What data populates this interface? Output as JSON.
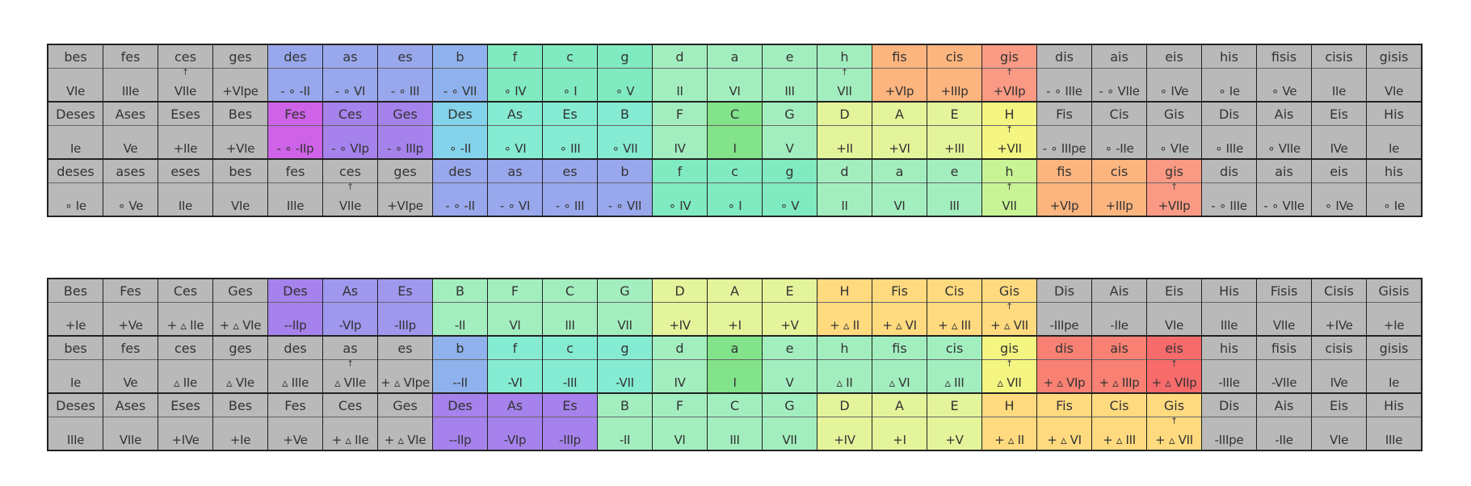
{
  "palette": {
    "g": "#b9b9b9",
    "P": "#cf63e8",
    "V": "#a682ec",
    "U": "#9f98ee",
    "L": "#99a8ec",
    "K": "#8fb2ec",
    "S": "#84d3ea",
    "T": "#85ebd2",
    "M": "#80eac0",
    "m": "#a3eebf",
    "N": "#82e38a",
    "Y": "#c8f495",
    "y": "#e4f49b",
    "Q": "#f5f582",
    "O": "#ffda7f",
    "o": "#fdb57f",
    "R": "#fb9a84",
    "r": "#f88173",
    "X": "#f76b6b"
  },
  "grids": [
    {
      "name": "top",
      "bands": [
        {
          "notes": [
            "bes",
            "fes",
            "ces",
            "ges",
            "des",
            "as",
            "es",
            "b",
            "f",
            "c",
            "g",
            "d",
            "a",
            "e",
            "h",
            "fis",
            "cis",
            "gis",
            "dis",
            "ais",
            "eis",
            "his",
            "fisis",
            "cisis",
            "gisis"
          ],
          "degrees": [
            "VIe",
            "IIIe",
            "VIIe",
            "+VIpe",
            "- ∘ -II",
            "- ∘ VI",
            "- ∘ III",
            "- ∘ VII",
            "∘ IV",
            "∘ I",
            "∘ V",
            "II",
            "VI",
            "III",
            "VII",
            "+VIp",
            "+IIIp",
            "+VIIp",
            "- ∘ IIIe",
            "- ∘ VIIe",
            "∘ IVe",
            "∘ Ie",
            "∘ Ve",
            "IIe",
            "VIe"
          ],
          "arrows": [
            2,
            14,
            17
          ],
          "colors": "ggggLLLKMMMmmmmooRggggggg"
        },
        {
          "notes": [
            "Deses",
            "Ases",
            "Eses",
            "Bes",
            "Fes",
            "Ces",
            "Ges",
            "Des",
            "As",
            "Es",
            "B",
            "F",
            "C",
            "G",
            "D",
            "A",
            "E",
            "H",
            "Fis",
            "Cis",
            "Gis",
            "Dis",
            "Ais",
            "Eis",
            "His"
          ],
          "degrees": [
            "Ie",
            "Ve",
            "+IIe",
            "+VIe",
            "- ∘ -IIp",
            "- ∘ VIp",
            "- ∘ IIIp",
            "∘ -II",
            "∘ VI",
            "∘ III",
            "∘ VII",
            "IV",
            "I",
            "V",
            "+II",
            "+VI",
            "+III",
            "+VII",
            "- ∘ IIIpe",
            "∘ -IIe",
            "∘ VIe",
            "∘ IIIe",
            "∘ VIIe",
            "IVe",
            "Ie"
          ],
          "arrows": [
            17
          ],
          "colors": "ggggPVVSTTTmNmyyyQggggggg"
        },
        {
          "notes": [
            "deses",
            "ases",
            "eses",
            "bes",
            "fes",
            "ces",
            "ges",
            "des",
            "as",
            "es",
            "b",
            "f",
            "c",
            "g",
            "d",
            "a",
            "e",
            "h",
            "fis",
            "cis",
            "gis",
            "dis",
            "ais",
            "eis",
            "his"
          ],
          "degrees": [
            "∘ Ie",
            "∘ Ve",
            "IIe",
            "VIe",
            "IIIe",
            "VIIe",
            "+VIpe",
            "- ∘ -II",
            "- ∘ VI",
            "- ∘ III",
            "- ∘ VII",
            "∘ IV",
            "∘ I",
            "∘ V",
            "II",
            "VI",
            "III",
            "VII",
            "+VIp",
            "+IIIp",
            "+VIIp",
            "- ∘ IIIe",
            "- ∘ VIIe",
            "∘ IVe",
            "∘ Ie"
          ],
          "arrows": [
            5,
            17,
            20
          ],
          "colors": "gggggggLLLLMMMmmmYooRgggg"
        }
      ]
    },
    {
      "name": "bottom",
      "bands": [
        {
          "notes": [
            "Bes",
            "Fes",
            "Ces",
            "Ges",
            "Des",
            "As",
            "Es",
            "B",
            "F",
            "C",
            "G",
            "D",
            "A",
            "E",
            "H",
            "Fis",
            "Cis",
            "Gis",
            "Dis",
            "Ais",
            "Eis",
            "His",
            "Fisis",
            "Cisis",
            "Gisis"
          ],
          "degrees": [
            "+Ie",
            "+Ve",
            "+ ▵ IIe",
            "+ ▵ VIe",
            "--IIp",
            "-VIp",
            "-IIIp",
            "-II",
            "VI",
            "III",
            "VII",
            "+IV",
            "+I",
            "+V",
            "+ ▵ II",
            "+ ▵ VI",
            "+ ▵ III",
            "+ ▵ VII",
            "-IIIpe",
            "-IIe",
            "VIe",
            "IIIe",
            "VIIe",
            "+IVe",
            "+Ie"
          ],
          "arrows": [
            17
          ],
          "colors": "ggggVUUmmmmyyyOOOOggggggg"
        },
        {
          "notes": [
            "bes",
            "fes",
            "ces",
            "ges",
            "des",
            "as",
            "es",
            "b",
            "f",
            "c",
            "g",
            "d",
            "a",
            "e",
            "h",
            "fis",
            "cis",
            "gis",
            "dis",
            "ais",
            "eis",
            "his",
            "fisis",
            "cisis",
            "gisis"
          ],
          "degrees": [
            "Ie",
            "Ve",
            "▵ IIe",
            "▵ VIe",
            "▵ IIIe",
            "▵ VIIe",
            "+ ▵ VIpe",
            "--II",
            "-VI",
            "-III",
            "-VII",
            "IV",
            "I",
            "V",
            "▵ II",
            "▵ VI",
            "▵ III",
            "▵ VII",
            "+ ▵ VIp",
            "+ ▵ IIIp",
            "+ ▵ VIIp",
            "-IIIe",
            "-VIIe",
            "IVe",
            "Ie"
          ],
          "arrows": [
            5,
            17,
            20
          ],
          "colors": "gggggggKTTTmNmmmmQrrXgggg"
        },
        {
          "notes": [
            "Deses",
            "Ases",
            "Eses",
            "Bes",
            "Fes",
            "Ces",
            "Ges",
            "Des",
            "As",
            "Es",
            "B",
            "F",
            "C",
            "G",
            "D",
            "A",
            "E",
            "H",
            "Fis",
            "Cis",
            "Gis",
            "Dis",
            "Ais",
            "Eis",
            "His"
          ],
          "degrees": [
            "IIIe",
            "VIIe",
            "+IVe",
            "+Ie",
            "+Ve",
            "+ ▵ IIe",
            "+ ▵ VIe",
            "--IIp",
            "-VIp",
            "-IIIp",
            "-II",
            "VI",
            "III",
            "VII",
            "+IV",
            "+I",
            "+V",
            "+ ▵ II",
            "+ ▵ VI",
            "+ ▵ III",
            "+ ▵ VII",
            "-IIIpe",
            "-IIe",
            "VIe",
            "IIIe"
          ],
          "arrows": [
            20
          ],
          "colors": "gggggggVVVmmmmyyyOOOOgggg"
        }
      ]
    }
  ]
}
